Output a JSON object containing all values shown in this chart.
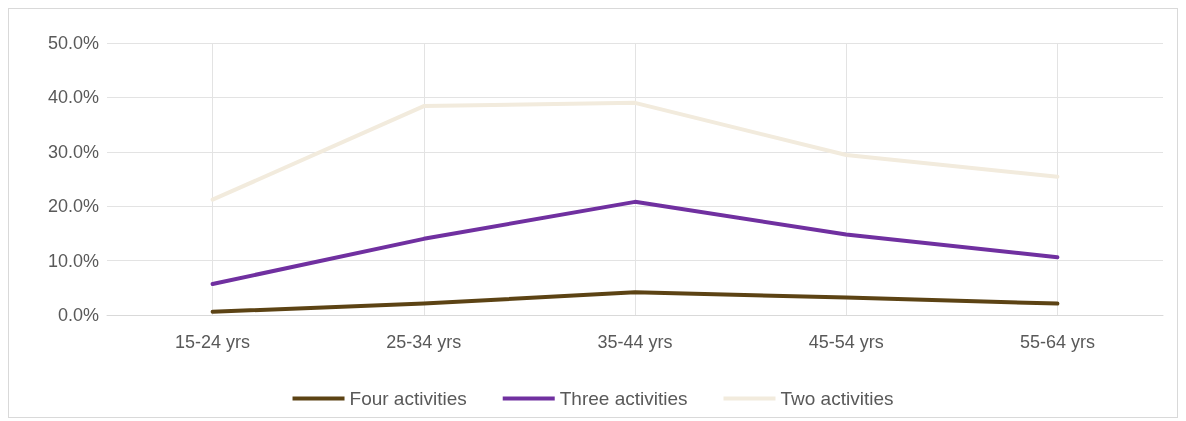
{
  "chart_data": {
    "type": "line",
    "categories": [
      "15-24 yrs",
      "25-34 yrs",
      "35-44 yrs",
      "45-54 yrs",
      "55-64 yrs"
    ],
    "series": [
      {
        "name": "Four activities",
        "color": "#5c4314",
        "values": [
          0.6,
          2.1,
          4.2,
          3.2,
          2.1
        ]
      },
      {
        "name": "Three activities",
        "color": "#7030a0",
        "values": [
          5.7,
          14.0,
          20.8,
          14.8,
          10.6
        ]
      },
      {
        "name": "Two activities",
        "color": "#f2ebdd",
        "values": [
          21.2,
          38.4,
          39.0,
          29.4,
          25.4
        ]
      }
    ],
    "ylim": [
      0,
      50
    ],
    "yticks": [
      {
        "value": 0,
        "label": "0.0%"
      },
      {
        "value": 10,
        "label": "10.0%"
      },
      {
        "value": 20,
        "label": "20.0%"
      },
      {
        "value": 30,
        "label": "30.0%"
      },
      {
        "value": 40,
        "label": "40.0%"
      },
      {
        "value": 50,
        "label": "50.0%"
      }
    ],
    "grid": true,
    "legend": "bottom",
    "marker": "none",
    "line_style": "solid"
  }
}
